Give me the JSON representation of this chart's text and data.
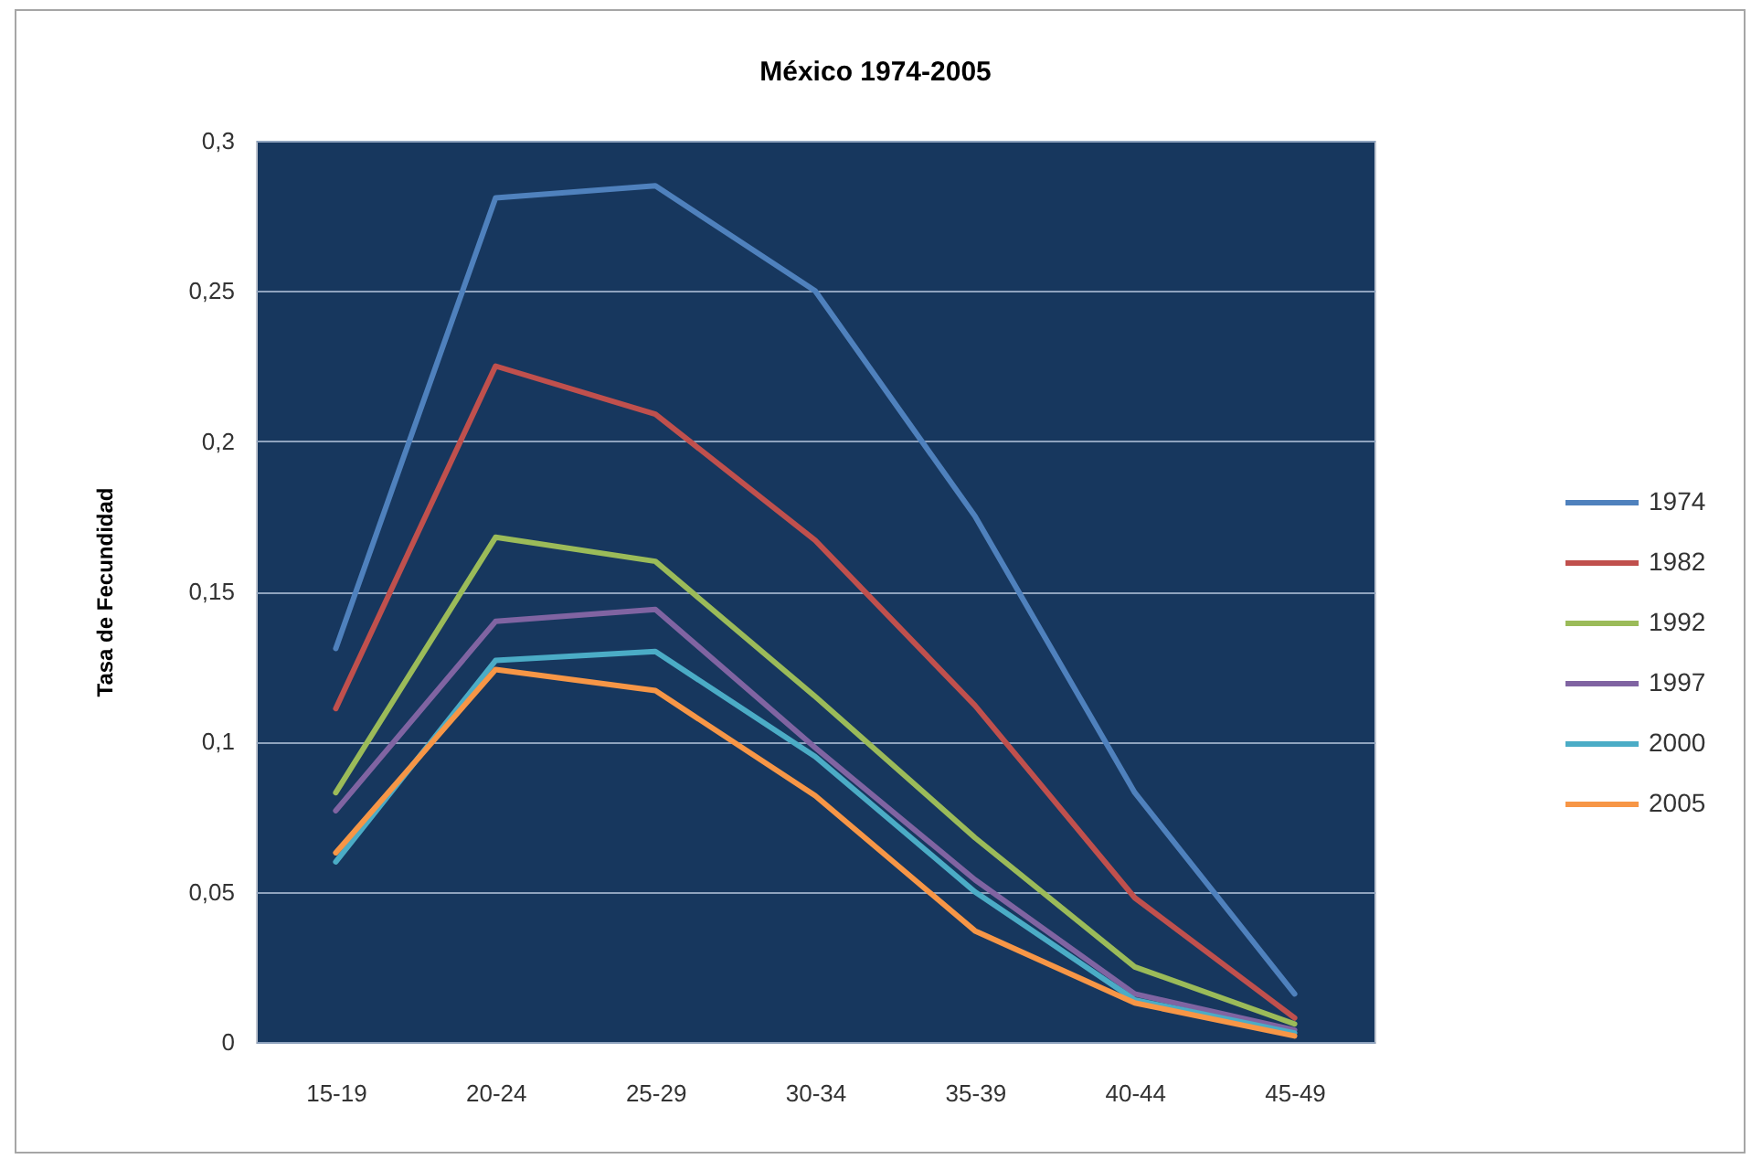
{
  "chart_data": {
    "type": "line",
    "title": "México 1974-2005",
    "ylabel": "Tasa de Fecundidad",
    "categories": [
      "15-19",
      "20-24",
      "25-29",
      "30-34",
      "35-39",
      "40-44",
      "45-49"
    ],
    "series": [
      {
        "name": "1974",
        "color": "#4f81bd",
        "values": [
          0.131,
          0.281,
          0.285,
          0.25,
          0.175,
          0.083,
          0.016
        ]
      },
      {
        "name": "1982",
        "color": "#c0504d",
        "values": [
          0.111,
          0.225,
          0.209,
          0.167,
          0.112,
          0.048,
          0.008
        ]
      },
      {
        "name": "1992",
        "color": "#9bbb59",
        "values": [
          0.083,
          0.168,
          0.16,
          0.115,
          0.068,
          0.025,
          0.006
        ]
      },
      {
        "name": "1997",
        "color": "#8064a2",
        "values": [
          0.077,
          0.14,
          0.144,
          0.098,
          0.054,
          0.016,
          0.004
        ]
      },
      {
        "name": "2000",
        "color": "#4bacc6",
        "values": [
          0.06,
          0.127,
          0.13,
          0.095,
          0.05,
          0.014,
          0.003
        ]
      },
      {
        "name": "2005",
        "color": "#f79646",
        "values": [
          0.063,
          0.124,
          0.117,
          0.082,
          0.037,
          0.013,
          0.002
        ]
      }
    ],
    "ylim": [
      0,
      0.3
    ],
    "yticks": [
      0,
      {
        "value": 0.05,
        "label": "0,05"
      },
      {
        "value": 0.1,
        "label": "0,1"
      },
      {
        "value": 0.15,
        "label": "0,15"
      },
      {
        "value": 0.2,
        "label": "0,2"
      },
      {
        "value": 0.25,
        "label": "0,25"
      },
      {
        "value": 0.3,
        "label": "0,3"
      }
    ],
    "grid": "y",
    "legend": "right",
    "marker": "none",
    "line_style": "solid"
  }
}
